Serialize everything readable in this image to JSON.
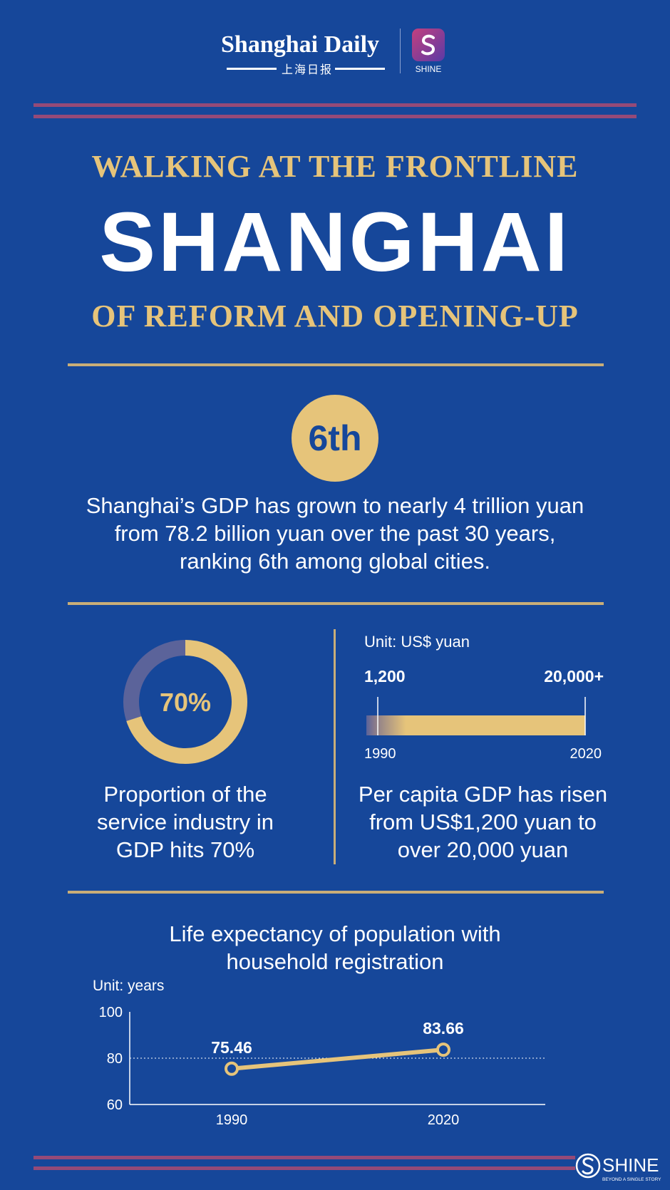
{
  "header": {
    "brand": "Shanghai Daily",
    "brand_cn": "上海日报",
    "app_label": "SHINE"
  },
  "title": {
    "top": "WALKING AT THE FRONTLINE",
    "main": "SHANGHAI",
    "bottom": "OF REFORM AND OPENING-UP"
  },
  "rank": {
    "badge": "6th",
    "text": "Shanghai’s GDP has grown to nearly 4 trillion yuan from 78.2 billion yuan over the past 30 years, ranking 6th among global cities."
  },
  "service": {
    "percent_label": "70%",
    "percent_value": 70,
    "caption": "Proportion of the service industry in GDP hits 70%"
  },
  "per_capita": {
    "unit": "Unit: US$ yuan",
    "start_label": "1,200",
    "end_label": "20,000+",
    "start_year": "1990",
    "end_year": "2020",
    "caption": "Per capita GDP has risen from US$1,200 yuan to over 20,000 yuan"
  },
  "life": {
    "title": "Life expectancy of population with household registration",
    "unit": "Unit: years"
  },
  "footer": {
    "logo": "SHINE",
    "tagline": "BEYOND A SINGLE STORY"
  },
  "colors": {
    "background": "#16479a",
    "gold": "#e6c47a",
    "rule": "#c9ae78",
    "stripe": "#954a78",
    "muted": "#5b639a"
  },
  "chart_data": [
    {
      "type": "donut",
      "values": [
        70,
        30
      ],
      "labels": [
        "Service industry",
        ""
      ],
      "center_label": "70%"
    },
    {
      "type": "bar",
      "x": [
        "1990",
        "2020"
      ],
      "values": [
        1200,
        20000
      ],
      "value_labels": [
        "1,200",
        "20,000+"
      ],
      "ylabel": "Unit: US$ yuan"
    },
    {
      "type": "line",
      "x": [
        "1990",
        "2020"
      ],
      "values": [
        75.46,
        83.66
      ],
      "value_labels": [
        "75.46",
        "83.66"
      ],
      "ylim": [
        60,
        100
      ],
      "yticks": [
        "100",
        "80",
        "60"
      ],
      "reference_line": 80,
      "ylabel": "Unit: years"
    }
  ]
}
